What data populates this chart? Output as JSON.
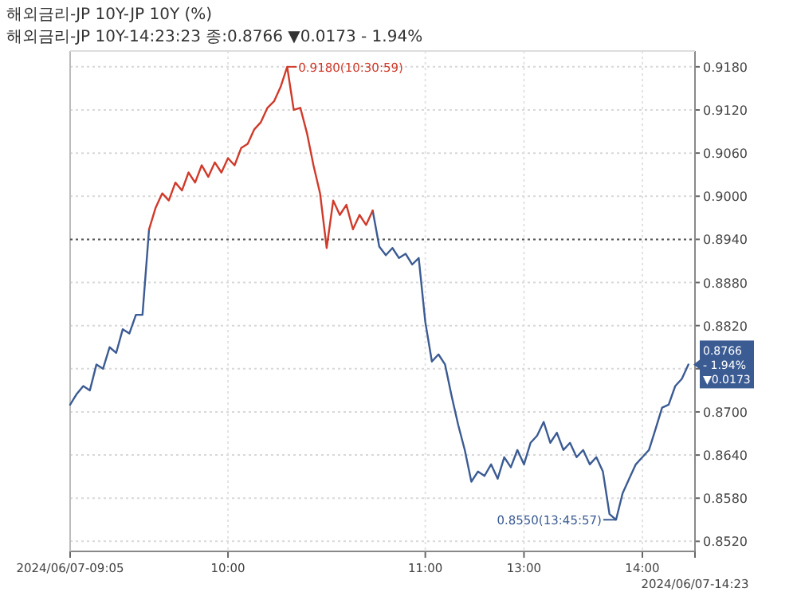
{
  "chart_data": {
    "type": "line",
    "title": "해외금리-JP   10Y-JP 10Y (%)",
    "subtitle": "해외금리-JP 10Y-14:23:23 종:0.8766 ▼0.0173 - 1.94%",
    "categories": [
      "2024/06/07-09:05",
      null,
      null,
      null,
      null,
      null,
      null,
      null,
      null,
      null,
      null,
      null,
      null,
      null,
      null,
      null,
      null,
      null,
      null,
      null,
      null,
      null,
      null,
      null,
      "10:00",
      null,
      null,
      null,
      null,
      null,
      null,
      null,
      null,
      null,
      null,
      null,
      null,
      null,
      null,
      null,
      null,
      null,
      null,
      null,
      null,
      null,
      null,
      null,
      null,
      null,
      null,
      null,
      null,
      null,
      "11:00",
      null,
      null,
      null,
      null,
      null,
      null,
      null,
      null,
      null,
      null,
      null,
      null,
      null,
      null,
      "13:00",
      null,
      null,
      null,
      null,
      null,
      null,
      null,
      null,
      null,
      null,
      null,
      null,
      null,
      null,
      null,
      null,
      null,
      "14:00",
      null,
      null,
      null,
      null,
      null,
      null,
      null,
      "2024/06/07-14:23"
    ],
    "ylim": [
      0.8506,
      0.9202
    ],
    "yticks": [
      {
        "value": 0.852,
        "label": "0.8520"
      },
      {
        "value": 0.858,
        "label": "0.8580"
      },
      {
        "value": 0.864,
        "label": "0.8640"
      },
      {
        "value": 0.87,
        "label": "0.8700"
      },
      {
        "value": 0.876,
        "label": null
      },
      {
        "value": 0.882,
        "label": "0.8820"
      },
      {
        "value": 0.888,
        "label": "0.8880"
      },
      {
        "value": 0.894,
        "label": "0.8940"
      },
      {
        "value": 0.9,
        "label": "0.9000"
      },
      {
        "value": 0.906,
        "label": "0.9060"
      },
      {
        "value": 0.912,
        "label": "0.9120"
      },
      {
        "value": 0.918,
        "label": "0.9180"
      }
    ],
    "grid": true,
    "marker": "none",
    "line_style": "solid",
    "ref_lines": [
      {
        "axis": "y",
        "value": 0.894,
        "label": null,
        "color": "#555555",
        "line_style": "dotted"
      }
    ],
    "series": [
      {
        "color": "#3b5b93",
        "values": [
          0.871,
          0.8725,
          0.8736,
          0.873,
          0.8766,
          0.876,
          0.879,
          0.8782,
          0.8815,
          0.8809,
          0.8835,
          0.8835,
          0.8954,
          null,
          null,
          null,
          null,
          null,
          null,
          null,
          null,
          null,
          null,
          null,
          null,
          null,
          null,
          null,
          null,
          null,
          null,
          null,
          null,
          null,
          null,
          null,
          null,
          null,
          null,
          null,
          null,
          null,
          null,
          null,
          null,
          null,
          0.898,
          0.893,
          0.8918,
          0.8928,
          0.8914,
          0.892,
          0.8905,
          0.8914,
          0.8825,
          0.877,
          0.878,
          0.8766,
          0.8722,
          0.8682,
          0.8647,
          0.8603,
          0.8617,
          0.8611,
          0.8627,
          0.8607,
          0.8637,
          0.8623,
          0.8647,
          0.8627,
          0.8657,
          0.8667,
          0.8686,
          0.8657,
          0.8671,
          0.8647,
          0.8657,
          0.8637,
          0.8647,
          0.8627,
          0.8637,
          0.8617,
          0.8558,
          0.855,
          0.8587,
          0.8607,
          0.8627,
          0.8637,
          0.8647,
          0.8676,
          0.8706,
          0.871,
          0.8736,
          0.8746,
          0.8766,
          null
        ]
      },
      {
        "color": "#d03a2a",
        "values": [
          null,
          null,
          null,
          null,
          null,
          null,
          null,
          null,
          null,
          null,
          null,
          null,
          0.8954,
          0.8984,
          0.9004,
          0.8994,
          0.9019,
          0.9008,
          0.9033,
          0.9019,
          0.9043,
          0.9027,
          0.9047,
          0.9033,
          0.9053,
          0.9043,
          0.9067,
          0.9073,
          0.9093,
          0.9103,
          0.9123,
          0.9132,
          0.9152,
          0.918,
          0.912,
          0.9123,
          0.9088,
          0.9043,
          0.9004,
          0.8928,
          0.8994,
          0.8974,
          0.8988,
          0.8954,
          0.8974,
          0.896,
          0.898,
          null,
          null,
          null,
          null,
          null,
          null,
          null,
          null,
          null,
          null,
          null,
          null,
          null,
          null,
          null,
          null,
          null,
          null,
          null,
          null,
          null,
          null,
          null,
          null,
          null,
          null,
          null,
          null,
          null,
          null,
          null,
          null,
          null,
          null,
          null,
          null,
          null,
          null,
          null,
          null,
          null,
          null,
          null,
          null,
          null,
          null,
          null,
          null,
          null
        ]
      }
    ],
    "annotations": [
      "0.9180(10:30:59)",
      "0.8550(13:45:57)",
      "0.8766\n- 1.94%\n▼0.0173"
    ]
  }
}
